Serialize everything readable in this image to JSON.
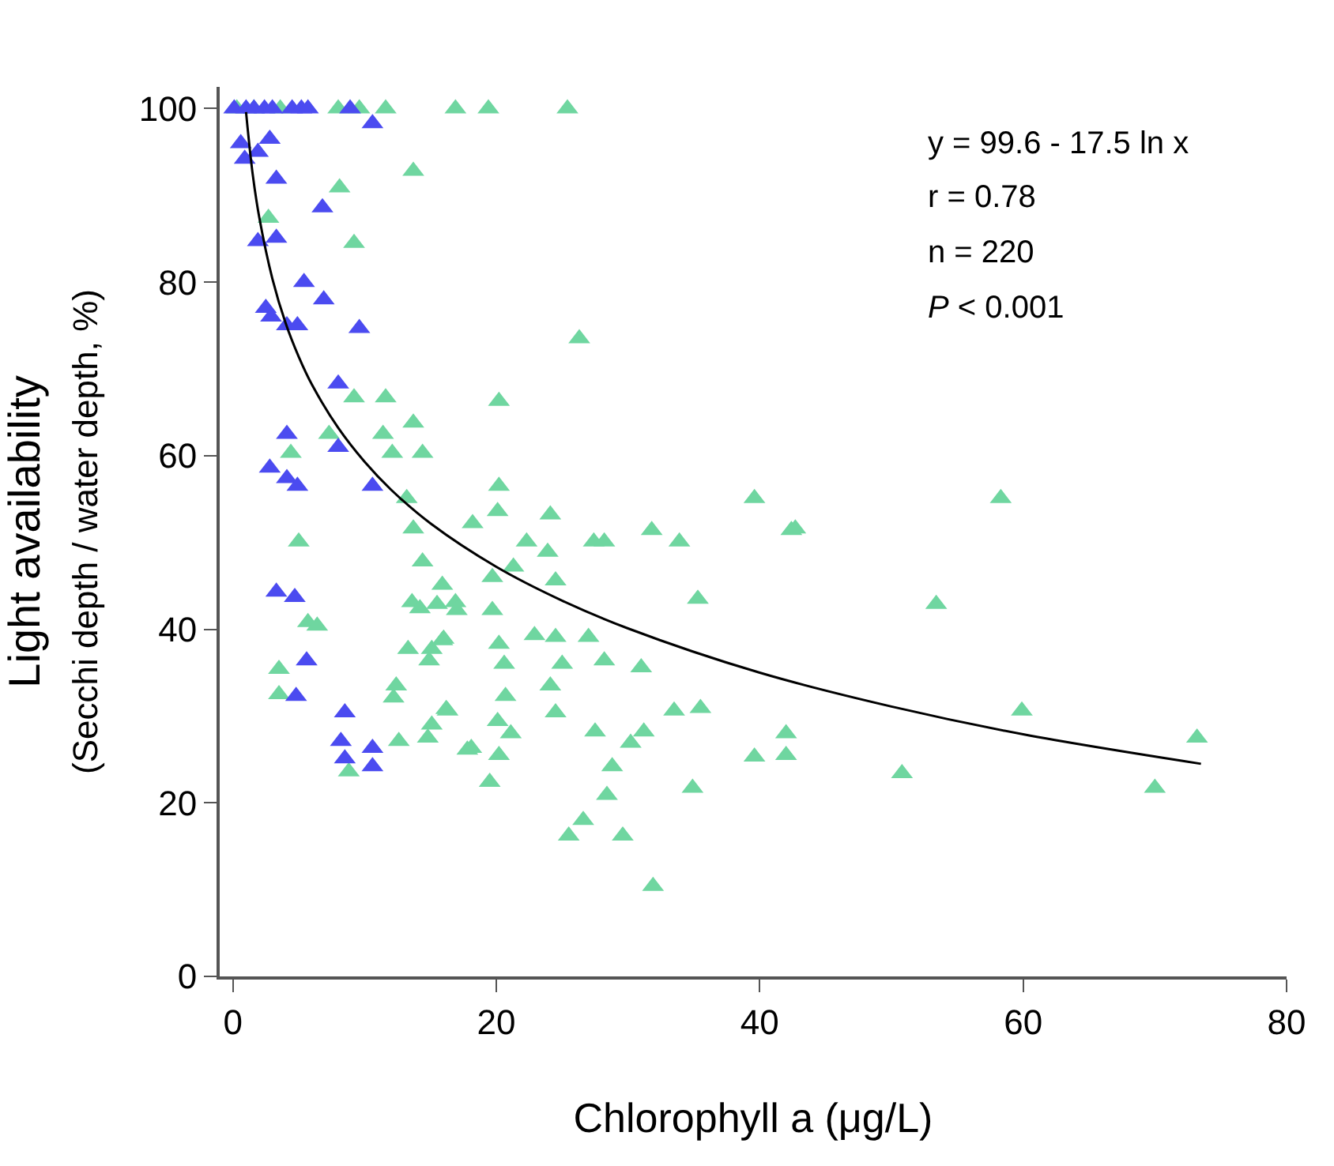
{
  "chart_data": {
    "type": "scatter",
    "xlabel": "Chlorophyll a (μg/L)",
    "ylabel": "Light availability\n(Secchi depth / water depth, %)",
    "xlim": [
      -1,
      80
    ],
    "ylim": [
      0,
      102.5
    ],
    "xticks": [
      0,
      20,
      40,
      60,
      80
    ],
    "yticks": [
      0,
      20,
      40,
      60,
      80,
      100
    ],
    "marker": "triangle",
    "annotations": [
      "y = 99.6 - 17.5 ln x",
      "r = 0.78",
      "n = 220",
      "P < 0.001"
    ],
    "series": [
      {
        "color": "#6fd6a0",
        "x": [
          0.3,
          1.6,
          3.6,
          8.0,
          9.6,
          11.6,
          16.9,
          19.4,
          25.4,
          26.3,
          20.2,
          8.1,
          13.7,
          2.7,
          9.2,
          9.2,
          11.6,
          7.3,
          11.4,
          13.7,
          4.4,
          12.1,
          14.4,
          13.2,
          13.7,
          5.0,
          14.4,
          15.9,
          13.6,
          14.2,
          15.5,
          16.9,
          17.0,
          5.7,
          6.4,
          13.3,
          15.9,
          15.1,
          14.9,
          3.5,
          12.4,
          12.2,
          3.5,
          16.2,
          15.1,
          14.8,
          12.6,
          8.8,
          17.8,
          20.2,
          20.1,
          18.2,
          24.1,
          22.3,
          23.9,
          27.4,
          28.2,
          31.8,
          33.9,
          39.6,
          21.3,
          19.7,
          24.5,
          35.3,
          19.7,
          16.0,
          20.2,
          22.9,
          24.5,
          27.0,
          20.6,
          25.0,
          28.2,
          31.0,
          24.1,
          20.7,
          16.3,
          24.5,
          33.5,
          35.5,
          20.1,
          21.1,
          27.5,
          31.2,
          30.2,
          18.1,
          20.2,
          28.8,
          19.5,
          28.4,
          34.9,
          26.6,
          25.5,
          29.6,
          31.9,
          39.6,
          42.0,
          42.0,
          42.4,
          42.7,
          58.3,
          53.4,
          59.9,
          73.2,
          70.0,
          50.8
        ],
        "values": [
          100,
          100,
          100,
          100,
          100,
          100,
          100,
          100,
          100,
          73.5,
          66.3,
          90.9,
          92.8,
          87.4,
          84.5,
          66.7,
          66.7,
          62.5,
          62.5,
          63.8,
          60.3,
          60.3,
          60.3,
          55.1,
          51.6,
          50.1,
          47.8,
          45.1,
          43.1,
          42.4,
          42.9,
          43.1,
          42.2,
          40.8,
          40.4,
          37.7,
          38.7,
          37.7,
          36.4,
          35.4,
          33.5,
          32.1,
          32.5,
          30.8,
          29.0,
          27.5,
          27.1,
          23.6,
          26.1,
          56.5,
          53.6,
          52.2,
          53.2,
          50.1,
          48.9,
          50.1,
          50.1,
          51.4,
          50.1,
          55.1,
          47.2,
          46.0,
          45.6,
          43.5,
          42.2,
          38.9,
          38.3,
          39.3,
          39.1,
          39.1,
          36.0,
          36.0,
          36.4,
          35.6,
          33.5,
          32.3,
          30.6,
          30.4,
          30.6,
          30.9,
          29.4,
          28.0,
          28.2,
          28.2,
          26.9,
          26.3,
          25.5,
          24.2,
          22.4,
          20.9,
          21.7,
          18.0,
          16.2,
          16.2,
          10.4,
          25.3,
          28.0,
          25.5,
          51.4,
          51.6,
          55.1,
          42.9,
          30.6,
          27.5,
          21.7,
          23.4
        ]
      },
      {
        "color": "#4b4bf0",
        "x": [
          0.1,
          1.0,
          1.6,
          2.4,
          3.0,
          4.5,
          5.2,
          5.7,
          8.9,
          10.6,
          0.6,
          2.8,
          0.9,
          1.9,
          3.3,
          6.8,
          1.9,
          3.3,
          5.4,
          6.9,
          2.5,
          2.9,
          4.1,
          4.9,
          9.6,
          8.0,
          4.1,
          8.0,
          2.8,
          4.1,
          4.9,
          10.6,
          3.3,
          4.7,
          5.6,
          4.8,
          8.5,
          8.2,
          8.5,
          10.6,
          10.6
        ],
        "values": [
          100,
          100,
          100,
          100,
          100,
          100,
          100,
          100,
          100,
          98.3,
          96.0,
          96.5,
          94.2,
          95.0,
          91.9,
          88.6,
          84.7,
          85.1,
          80.0,
          78.0,
          77.0,
          76.0,
          75.0,
          75.0,
          74.7,
          68.3,
          62.5,
          61.0,
          58.6,
          57.4,
          56.5,
          56.5,
          44.3,
          43.7,
          36.4,
          32.3,
          30.4,
          27.1,
          25.1,
          26.3,
          24.2
        ]
      },
      {
        "type": "line",
        "color": "#000000",
        "marker": "none",
        "x": [
          1,
          1.5,
          2,
          3,
          4,
          5,
          6,
          8,
          10,
          12,
          15,
          20,
          25,
          30,
          40,
          50,
          60,
          73.5
        ],
        "values": [
          99.6,
          92.5,
          87.5,
          80.4,
          75.3,
          71.4,
          68.2,
          63.2,
          59.3,
          56.1,
          52.2,
          47.2,
          43.3,
          40.1,
          35.0,
          31.1,
          27.9,
          24.5
        ]
      }
    ]
  }
}
